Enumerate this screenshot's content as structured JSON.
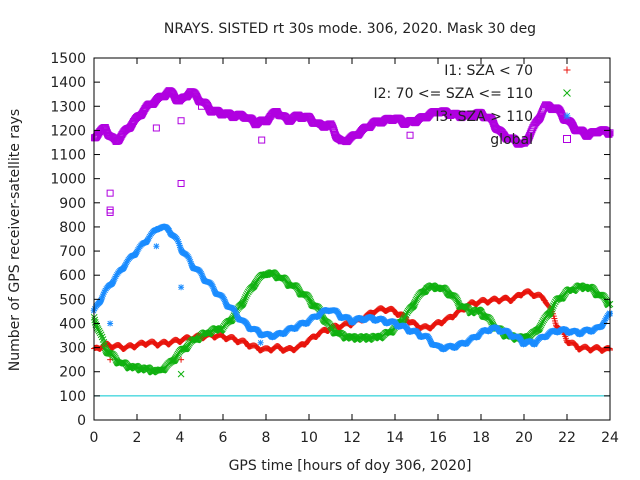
{
  "chart_data": {
    "type": "scatter",
    "title": "NRAYS. SISTED rt 30s mode. 306, 2020. Mask 30 deg",
    "xlabel": "GPS time [hours of doy 306, 2020]",
    "ylabel": "Number of GPS receiver-satellite rays",
    "xlim": [
      0,
      24
    ],
    "ylim": [
      0,
      1500
    ],
    "xticks": [
      0,
      2,
      4,
      6,
      8,
      10,
      12,
      14,
      16,
      18,
      20,
      22,
      24
    ],
    "xtick_labels": [
      "0",
      "2",
      "4",
      "6",
      "8",
      "10",
      "12",
      "14",
      "16",
      "18",
      "20",
      "22",
      "24"
    ],
    "yticks": [
      0,
      100,
      200,
      300,
      400,
      500,
      600,
      700,
      800,
      900,
      1000,
      1100,
      1200,
      1300,
      1400,
      1500
    ],
    "ytick_labels": [
      "0",
      "100",
      "200",
      "300",
      "400",
      "500",
      "600",
      "700",
      "800",
      "900",
      "1000",
      "1100",
      "1200",
      "1300",
      "1400",
      "1500"
    ],
    "grid": false,
    "legend_position": "top-right",
    "reference_line": {
      "y": 100,
      "color": "#00c8d0"
    },
    "series": [
      {
        "name": "I1: SZA < 70",
        "marker": "+",
        "color": "#e8140c",
        "x": [
          0,
          0.5,
          1,
          1.5,
          2,
          2.5,
          3,
          3.5,
          4,
          4.5,
          5,
          5.5,
          6,
          6.5,
          7,
          7.5,
          8,
          8.5,
          9,
          9.5,
          10,
          10.5,
          11,
          11.5,
          12,
          12.5,
          13,
          13.5,
          14,
          14.5,
          15,
          15.5,
          16,
          16.5,
          17,
          17.5,
          18,
          18.5,
          19,
          19.5,
          20,
          20.5,
          21,
          21.5,
          22,
          22.5,
          23,
          23.5,
          24
        ],
        "y": [
          290,
          310,
          305,
          300,
          310,
          320,
          315,
          320,
          330,
          340,
          345,
          350,
          345,
          335,
          320,
          300,
          290,
          300,
          290,
          300,
          330,
          360,
          380,
          390,
          400,
          420,
          450,
          460,
          450,
          420,
          390,
          380,
          400,
          420,
          450,
          480,
          490,
          495,
          500,
          500,
          530,
          520,
          500,
          400,
          330,
          300,
          295,
          295,
          290
        ],
        "outliers": [
          [
            0.75,
            250
          ],
          [
            4.05,
            250
          ]
        ]
      },
      {
        "name": "I2: 70 <= SZA <= 110",
        "marker": "x",
        "color": "#10b010",
        "x": [
          0,
          0.5,
          1,
          1.5,
          2,
          2.5,
          3,
          3.5,
          4,
          4.5,
          5,
          5.5,
          6,
          6.5,
          7,
          7.5,
          8,
          8.5,
          9,
          9.5,
          10,
          10.5,
          11,
          11.5,
          12,
          12.5,
          13,
          13.5,
          14,
          14.5,
          15,
          15.5,
          16,
          16.5,
          17,
          17.5,
          18,
          18.5,
          19,
          19.5,
          20,
          20.5,
          21,
          21.5,
          22,
          22.5,
          23,
          23.5,
          24
        ],
        "y": [
          430,
          300,
          250,
          225,
          215,
          210,
          200,
          230,
          280,
          320,
          350,
          370,
          380,
          430,
          500,
          570,
          610,
          600,
          570,
          540,
          500,
          450,
          380,
          350,
          340,
          340,
          340,
          350,
          380,
          430,
          500,
          550,
          550,
          530,
          480,
          450,
          450,
          400,
          360,
          340,
          340,
          360,
          420,
          490,
          530,
          550,
          550,
          520,
          480
        ],
        "outliers": [
          [
            4.05,
            190
          ]
        ]
      },
      {
        "name": "I3: SZA > 110",
        "marker": "*",
        "color": "#1a8cff",
        "x": [
          0,
          0.5,
          1,
          1.5,
          2,
          2.5,
          3,
          3.5,
          4,
          4.5,
          5,
          5.5,
          6,
          6.5,
          7,
          7.5,
          8,
          8.5,
          9,
          9.5,
          10,
          10.5,
          11,
          11.5,
          12,
          12.5,
          13,
          13.5,
          14,
          14.5,
          15,
          15.5,
          16,
          16.5,
          17,
          17.5,
          18,
          18.5,
          19,
          19.5,
          20,
          20.5,
          21,
          21.5,
          22,
          22.5,
          23,
          23.5,
          24
        ],
        "y": [
          450,
          530,
          590,
          650,
          700,
          750,
          800,
          790,
          720,
          650,
          600,
          550,
          500,
          450,
          400,
          370,
          350,
          350,
          370,
          390,
          410,
          440,
          460,
          430,
          410,
          420,
          420,
          410,
          400,
          380,
          360,
          340,
          300,
          300,
          310,
          330,
          360,
          380,
          370,
          350,
          320,
          320,
          350,
          370,
          370,
          360,
          370,
          380,
          440
        ],
        "outliers": [
          [
            0.75,
            400
          ],
          [
            2.9,
            720
          ],
          [
            4.05,
            550
          ],
          [
            7.75,
            320
          ]
        ]
      },
      {
        "name": "global",
        "marker": "square",
        "color": "#b000e0",
        "x": [
          0,
          0.5,
          1,
          1.5,
          2,
          2.5,
          3,
          3.5,
          4,
          4.5,
          5,
          5.5,
          6,
          6.5,
          7,
          7.5,
          8,
          8.5,
          9,
          9.5,
          10,
          10.5,
          11,
          11.5,
          12,
          12.5,
          13,
          13.5,
          14,
          14.5,
          15,
          15.5,
          16,
          16.5,
          17,
          17.5,
          18,
          18.5,
          19,
          19.5,
          20,
          20.5,
          21,
          21.5,
          22,
          22.5,
          23,
          23.5,
          24
        ],
        "y": [
          1170,
          1210,
          1150,
          1200,
          1250,
          1300,
          1330,
          1360,
          1320,
          1360,
          1320,
          1280,
          1270,
          1260,
          1260,
          1230,
          1240,
          1280,
          1240,
          1260,
          1250,
          1220,
          1220,
          1150,
          1170,
          1200,
          1230,
          1240,
          1250,
          1230,
          1240,
          1260,
          1280,
          1270,
          1260,
          1260,
          1270,
          1240,
          1180,
          1160,
          1140,
          1220,
          1300,
          1290,
          1240,
          1200,
          1180,
          1200,
          1190
        ],
        "outliers": [
          [
            0.75,
            940
          ],
          [
            0.75,
            870
          ],
          [
            0.75,
            860
          ],
          [
            2.9,
            1210
          ],
          [
            4.05,
            980
          ],
          [
            4.05,
            1240
          ],
          [
            5.0,
            1300
          ],
          [
            7.8,
            1160
          ],
          [
            14.7,
            1180
          ]
        ]
      }
    ]
  }
}
